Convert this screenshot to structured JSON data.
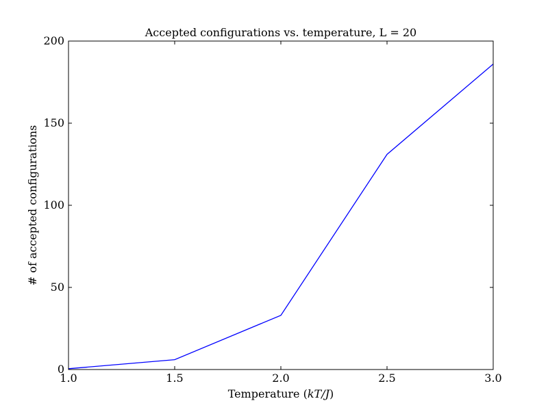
{
  "chart_data": {
    "type": "line",
    "title": "Accepted configurations vs. temperature, L = 20",
    "xlabel_prefix": "Temperature (",
    "xlabel_math": "kT/J",
    "xlabel_suffix": ")",
    "ylabel": "# of accepted configurations",
    "xlim": [
      1.0,
      3.0
    ],
    "ylim": [
      0,
      200
    ],
    "xticks": [
      1.0,
      1.5,
      2.0,
      2.5,
      3.0
    ],
    "xtick_labels": [
      "1.0",
      "1.5",
      "2.0",
      "2.5",
      "3.0"
    ],
    "yticks": [
      0,
      50,
      100,
      150,
      200
    ],
    "ytick_labels": [
      "0",
      "50",
      "100",
      "150",
      "200"
    ],
    "grid": false,
    "series": [
      {
        "color": "#0000ff",
        "x": [
          1.0,
          1.5,
          2.0,
          2.5,
          3.0
        ],
        "y": [
          0.5,
          6,
          33,
          131,
          186
        ]
      }
    ]
  }
}
